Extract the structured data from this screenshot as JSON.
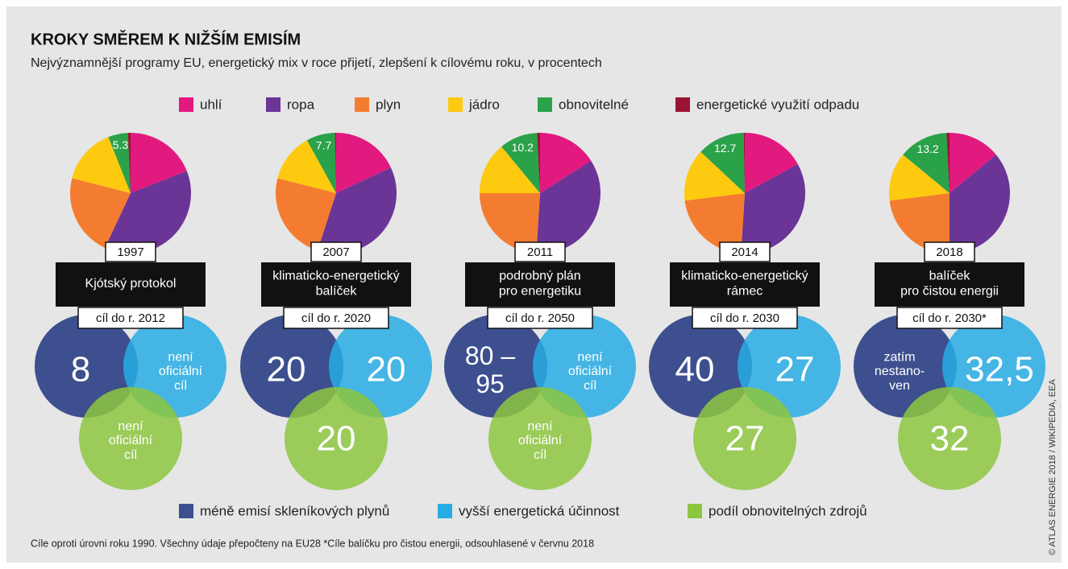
{
  "title": "KROKY SMĚREM K NIŽŠÍM EMISÍM",
  "subtitle": "Nejvýznamnější programy EU, energetický mix v roce přijetí, zlepšení k cílovému roku, v procentech",
  "chart_data": [
    {
      "type": "pie",
      "categories": [
        "uhlí",
        "ropa",
        "plyn",
        "jádro",
        "obnovitelné",
        "energetické využití odpadu"
      ],
      "colors": [
        "#e2197f",
        "#6a3596",
        "#f47c30",
        "#fdca0f",
        "#2aa24a",
        "#9b1433"
      ],
      "values": [
        19,
        38,
        22,
        15,
        5.3,
        0.7
      ],
      "value_labels": [
        null,
        null,
        null,
        null,
        "5.3",
        null
      ]
    },
    {
      "type": "pie",
      "categories": [
        "uhlí",
        "ropa",
        "plyn",
        "jádro",
        "obnovitelné",
        "energetické využití odpadu"
      ],
      "colors": [
        "#e2197f",
        "#6a3596",
        "#f47c30",
        "#fdca0f",
        "#2aa24a",
        "#9b1433"
      ],
      "values": [
        18,
        37,
        24,
        13,
        7.7,
        0.3
      ],
      "value_labels": [
        null,
        null,
        null,
        null,
        "7.7",
        null
      ]
    },
    {
      "type": "pie",
      "categories": [
        "uhlí",
        "ropa",
        "plyn",
        "jádro",
        "obnovitelné",
        "energetické využití odpadu"
      ],
      "colors": [
        "#e2197f",
        "#6a3596",
        "#f47c30",
        "#fdca0f",
        "#2aa24a",
        "#9b1433"
      ],
      "values": [
        16,
        35,
        24,
        14,
        10.2,
        0.8
      ],
      "value_labels": [
        null,
        null,
        null,
        null,
        "10.2",
        null
      ]
    },
    {
      "type": "pie",
      "categories": [
        "uhlí",
        "ropa",
        "plyn",
        "jádro",
        "obnovitelné",
        "energetické využití odpadu"
      ],
      "colors": [
        "#e2197f",
        "#6a3596",
        "#f47c30",
        "#fdca0f",
        "#2aa24a",
        "#9b1433"
      ],
      "values": [
        17,
        34,
        22,
        14,
        12.7,
        0.3
      ],
      "value_labels": [
        null,
        null,
        null,
        null,
        "12.7",
        null
      ]
    },
    {
      "type": "pie",
      "categories": [
        "uhlí",
        "ropa",
        "plyn",
        "jádro",
        "obnovitelné",
        "energetické využití odpadu"
      ],
      "colors": [
        "#e2197f",
        "#6a3596",
        "#f47c30",
        "#fdca0f",
        "#2aa24a",
        "#9b1433"
      ],
      "values": [
        14,
        36,
        23,
        13,
        13.2,
        0.8
      ],
      "value_labels": [
        null,
        null,
        null,
        null,
        "13.2",
        null
      ]
    }
  ],
  "programs": [
    {
      "year": "1997",
      "name": [
        "Kjótský protokol"
      ],
      "target": "cíl do r. 2012",
      "ghg": [
        "8"
      ],
      "efficiency": [
        "není",
        "oficiální",
        "cíl"
      ],
      "renewables": [
        "není",
        "oficiální",
        "cíl"
      ]
    },
    {
      "year": "2007",
      "name": [
        "klimaticko-energetický",
        "balíček"
      ],
      "target": "cíl do r. 2020",
      "ghg": [
        "20"
      ],
      "efficiency": [
        "20"
      ],
      "renewables": [
        "20"
      ]
    },
    {
      "year": "2011",
      "name": [
        "podrobný plán",
        "pro energetiku"
      ],
      "target": "cíl do r. 2050",
      "ghg": [
        "80 –",
        "95"
      ],
      "efficiency": [
        "není",
        "oficiální",
        "cíl"
      ],
      "renewables": [
        "není",
        "oficiální",
        "cíl"
      ]
    },
    {
      "year": "2014",
      "name": [
        "klimaticko-energetický",
        "rámec"
      ],
      "target": "cíl do r. 2030",
      "ghg": [
        "40"
      ],
      "efficiency": [
        "27"
      ],
      "renewables": [
        "27"
      ]
    },
    {
      "year": "2018",
      "name": [
        "balíček",
        "pro čistou energii"
      ],
      "target": "cíl do r. 2030*",
      "ghg": [
        "zatím",
        "nestano-",
        "ven"
      ],
      "efficiency": [
        "32,5"
      ],
      "renewables": [
        "32"
      ]
    }
  ],
  "target_legend": [
    {
      "name": "méně emisí skleníkových plynů",
      "color": "#3d4f8e"
    },
    {
      "name": "vyšší energetická účinnost",
      "color": "#27ace3"
    },
    {
      "name": "podíl obnovitelných zdrojů",
      "color": "#8dc63f"
    }
  ],
  "footnote": "Cíle oproti úrovni roku 1990. Všechny údaje přepočteny na EU28 *Cíle balíčku pro čistou energii, odsouhlasené v červnu 2018",
  "credit": "© ATLAS ENERGIE 2018 / WIKIPEDIA, EEA"
}
